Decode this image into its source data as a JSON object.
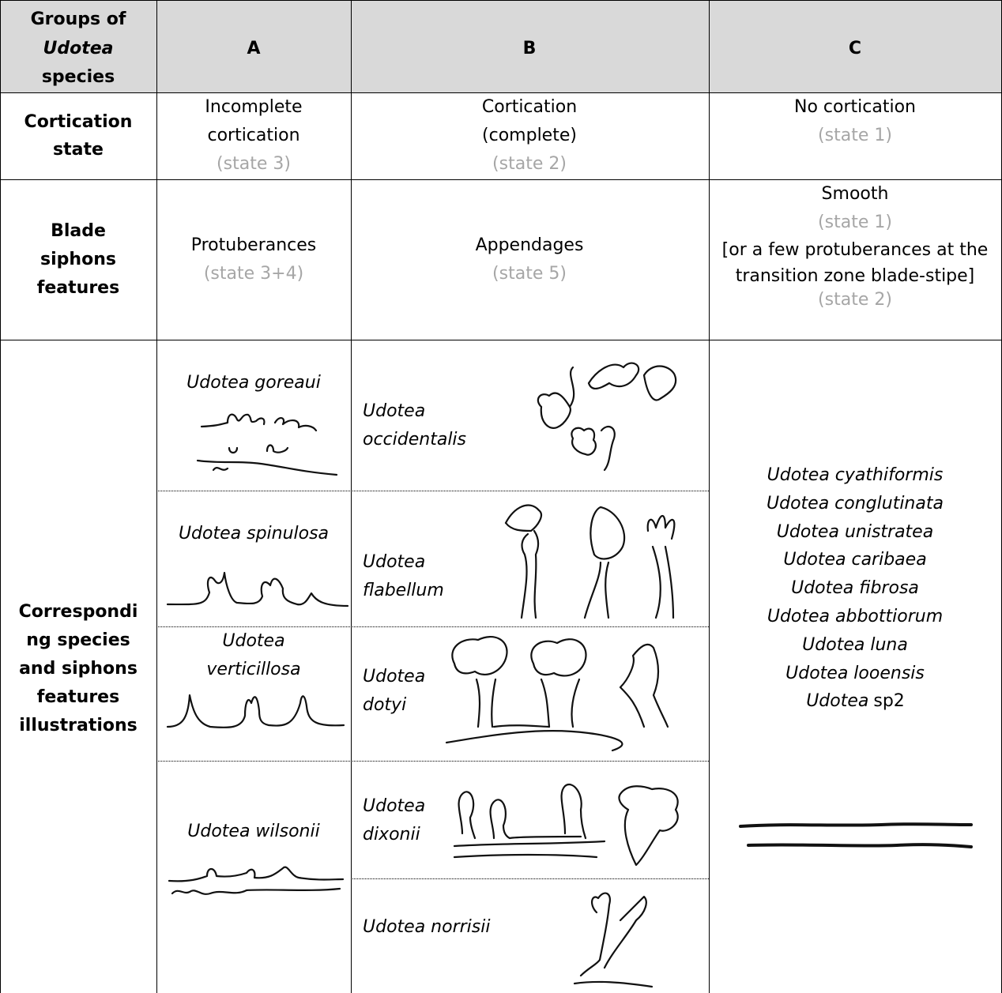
{
  "table": {
    "corner": [
      "Groups of",
      "Udotea",
      "species"
    ],
    "groups": [
      "A",
      "B",
      "C"
    ],
    "rows": [
      {
        "label": [
          "Cortication",
          "state"
        ],
        "cells": [
          {
            "text": [
              "Incomplete",
              "cortication"
            ],
            "state": "(state 3)"
          },
          {
            "text": [
              "Cortication",
              "(complete)"
            ],
            "state": "(state 2)"
          },
          {
            "text": [
              "No cortication"
            ],
            "state": "(state 1)"
          }
        ]
      },
      {
        "label": [
          "Blade",
          "siphons",
          "features"
        ],
        "cells": [
          {
            "text": [
              "Protuberances"
            ],
            "state": "(state 3+4)"
          },
          {
            "text": [
              "Appendages"
            ],
            "state": "(state 5)"
          },
          {
            "text": [
              "Smooth"
            ],
            "state": "(state 1)",
            "note": [
              "[or a few protuberances at the",
              "transition zone blade-stipe]"
            ],
            "note_state": "(state 2)"
          }
        ]
      }
    ],
    "species": {
      "label": [
        "Correspondi",
        "ng species",
        "and siphons",
        "features",
        "illustrations"
      ],
      "A": [
        [
          "Udotea goreaui"
        ],
        [
          "Udotea spinulosa"
        ],
        [
          "Udotea",
          "verticillosa"
        ],
        [
          "Udotea wilsonii"
        ]
      ],
      "B": [
        [
          "Udotea",
          "occidentalis"
        ],
        [
          "Udotea",
          "flabellum"
        ],
        [
          "Udotea",
          "dotyi"
        ],
        [
          "Udotea",
          "dixonii"
        ],
        [
          "Udotea norrisii"
        ]
      ],
      "C": [
        "Udotea cyathiformis",
        "Udotea conglutinata",
        "Udotea unistratea",
        "Udotea caribaea",
        "Udotea fibrosa",
        "Udotea abbottiorum",
        "Udotea luna",
        "Udotea looensis",
        {
          "italic": "Udotea",
          "plain": "sp2"
        }
      ]
    }
  }
}
